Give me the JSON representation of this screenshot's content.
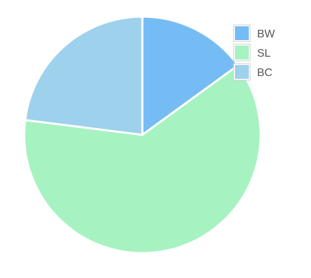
{
  "chart_data": {
    "type": "pie",
    "title": "",
    "slices": [
      {
        "label": "BW",
        "value": 15,
        "color": "#75bcf4"
      },
      {
        "label": "SL",
        "value": 62,
        "color": "#a6f2c0"
      },
      {
        "label": "BC",
        "value": 23,
        "color": "#9dd1ec"
      }
    ],
    "start_angle_deg": 0,
    "direction": "clockwise",
    "legend": {
      "position": "top-right",
      "items": [
        "BW",
        "SL",
        "BC"
      ]
    },
    "slice_border_color": "#ffffff"
  }
}
